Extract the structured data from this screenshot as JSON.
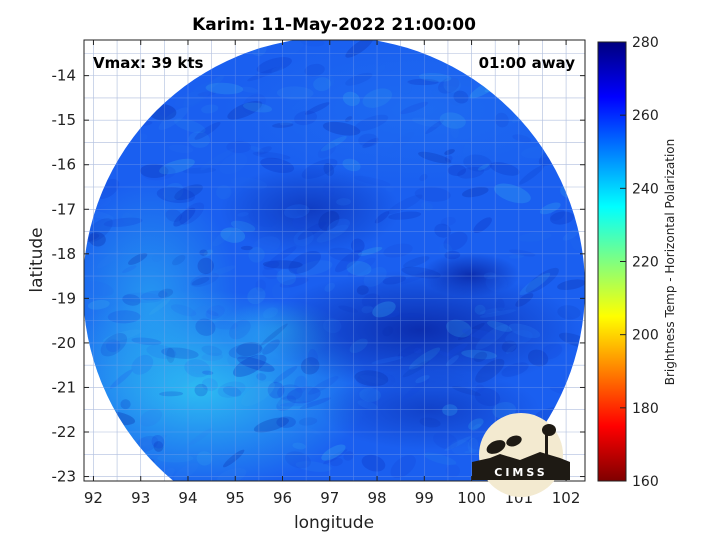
{
  "chart_data": {
    "type": "heatmap",
    "title": "Karim: 11-May-2022 21:00:00",
    "xlabel": "longitude",
    "ylabel": "latitude",
    "xlim": [
      91.8,
      102.4
    ],
    "ylim": [
      -23.1,
      -13.2
    ],
    "x_ticks": [
      "92",
      "93",
      "94",
      "95",
      "96",
      "97",
      "98",
      "99",
      "100",
      "101",
      "102"
    ],
    "y_ticks": [
      "-14",
      "-15",
      "-16",
      "-17",
      "-18",
      "-19",
      "-20",
      "-21",
      "-22",
      "-23"
    ],
    "annotations": {
      "vmax": "Vmax: 39 kts",
      "time_away": "01:00 away"
    },
    "colorbar": {
      "label": "Brightness Temp - Horizontal Polarization",
      "range": [
        160,
        280
      ],
      "ticks": [
        "280",
        "260",
        "240",
        "220",
        "200",
        "180",
        "160"
      ]
    },
    "data_region": {
      "shape": "circle",
      "center_lon": 97.3,
      "center_lat": -18.2,
      "radius_deg": 5.2,
      "background_value": 262,
      "features": [
        {
          "description": "warm (lighter) southwest quadrant",
          "lon": 94.5,
          "lat": -21.0,
          "value": 246
        },
        {
          "description": "cold (darker) band across center",
          "lon": 98.0,
          "lat": -19.0,
          "value": 270
        },
        {
          "description": "dark spot near circulation",
          "lon": 99.0,
          "lat": -17.8,
          "value": 272
        }
      ]
    },
    "grid": true,
    "grid_spacing_deg": 0.5,
    "colormap": "jet",
    "legend": "colorbar right"
  },
  "logo": {
    "text": "CIMSS"
  },
  "colors": {
    "field_mid": "#1a5cf0",
    "field_light": "#2aa8f0",
    "field_dark": "#0a2cb0"
  }
}
